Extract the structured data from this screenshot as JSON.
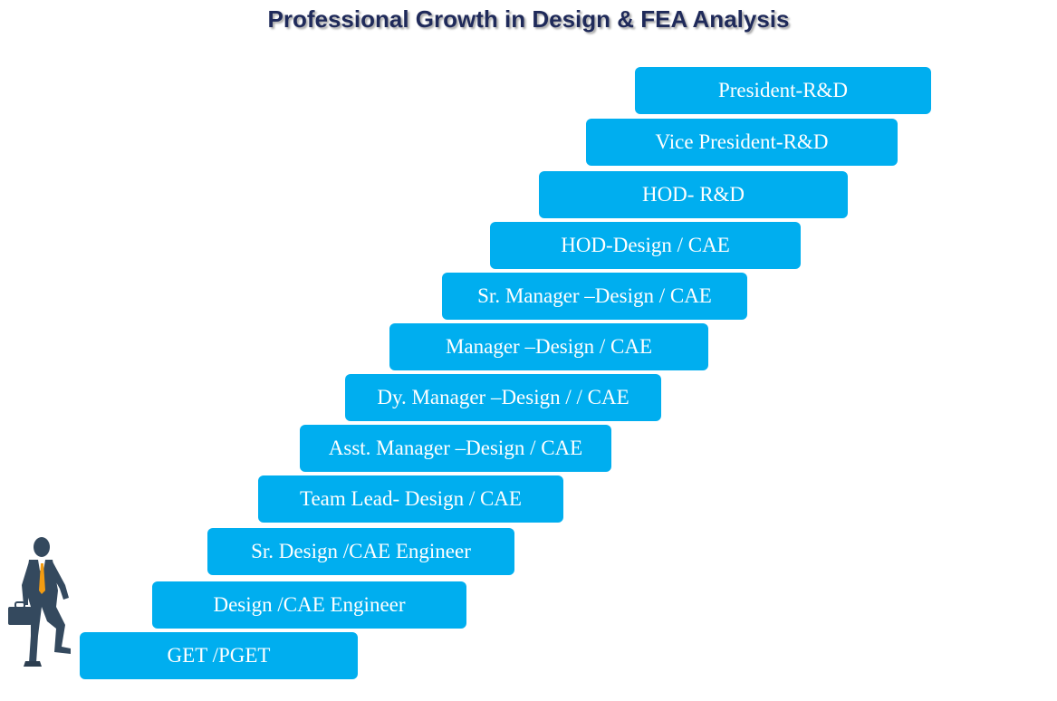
{
  "title": "Professional Growth in Design & FEA Analysis",
  "colors": {
    "step": "#00aeef",
    "title": "#1f2a5a",
    "figure": "#34495e",
    "tie": "#f39c12"
  },
  "icons": {
    "figure": "businessman-climbing-icon"
  },
  "steps": [
    {
      "label": "GET /PGET"
    },
    {
      "label": "Design /CAE Engineer"
    },
    {
      "label": "Sr. Design /CAE Engineer"
    },
    {
      "label": "Team Lead- Design / CAE"
    },
    {
      "label": "Asst. Manager –Design / CAE"
    },
    {
      "label": "Dy. Manager –Design / / CAE"
    },
    {
      "label": "Manager –Design / CAE"
    },
    {
      "label": "Sr. Manager –Design / CAE"
    },
    {
      "label": "HOD-Design / CAE"
    },
    {
      "label": "HOD- R&D"
    },
    {
      "label": "Vice President-R&D"
    },
    {
      "label": "President-R&D"
    }
  ]
}
